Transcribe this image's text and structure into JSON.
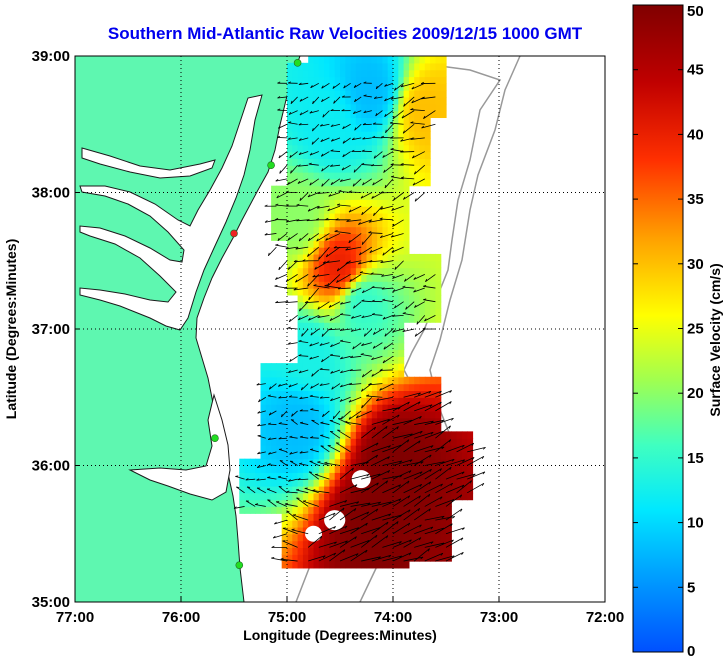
{
  "chart_data": {
    "type": "heatmap",
    "title": "Southern Mid-Atlantic Raw Velocities 2009/12/15 1000 GMT",
    "xlabel": "Longitude (Degrees:Minutes)",
    "ylabel": "Latitude (Degrees:Minutes)",
    "xlim": [
      -77,
      -72
    ],
    "ylim": [
      35,
      39
    ],
    "x_ticks": [
      {
        "value": -77,
        "label": "77:00"
      },
      {
        "value": -76,
        "label": "76:00"
      },
      {
        "value": -75,
        "label": "75:00"
      },
      {
        "value": -74,
        "label": "74:00"
      },
      {
        "value": -73,
        "label": "73:00"
      },
      {
        "value": -72,
        "label": "72:00"
      }
    ],
    "y_ticks": [
      {
        "value": 35,
        "label": "35:00"
      },
      {
        "value": 36,
        "label": "36:00"
      },
      {
        "value": 37,
        "label": "37:00"
      },
      {
        "value": 38,
        "label": "38:00"
      },
      {
        "value": 39,
        "label": "39:00"
      }
    ],
    "grid": true,
    "colorbar": {
      "label": "Surface Velocity (cm/s)",
      "range": [
        0,
        50
      ],
      "ticks": [
        0,
        5,
        10,
        15,
        20,
        25,
        30,
        35,
        40,
        45,
        50
      ],
      "colormap": [
        "#0040ff",
        "#00a0ff",
        "#00ffff",
        "#40ffb0",
        "#b0ff40",
        "#ffff00",
        "#ff9000",
        "#ff2000",
        "#c00000",
        "#800000"
      ]
    },
    "stations": [
      {
        "lon": -74.9,
        "lat": 38.95,
        "color": "#22dd22"
      },
      {
        "lon": -75.15,
        "lat": 38.2,
        "color": "#22dd22"
      },
      {
        "lon": -75.5,
        "lat": 37.7,
        "color": "#ee2222"
      },
      {
        "lon": -75.68,
        "lat": 36.2,
        "color": "#22dd22"
      },
      {
        "lon": -75.45,
        "lat": 35.27,
        "color": "#22dd22"
      }
    ],
    "velocity_field": {
      "note_units": "cm/s",
      "samples": [
        {
          "lon": -74.6,
          "lat": 38.5,
          "speed": 12
        },
        {
          "lon": -74.2,
          "lat": 38.75,
          "speed": 8
        },
        {
          "lon": -73.7,
          "lat": 38.6,
          "speed": 30
        },
        {
          "lon": -74.9,
          "lat": 37.8,
          "speed": 20
        },
        {
          "lon": -74.5,
          "lat": 37.45,
          "speed": 40
        },
        {
          "lon": -74.3,
          "lat": 37.2,
          "speed": 15
        },
        {
          "lon": -74.8,
          "lat": 36.8,
          "speed": 13
        },
        {
          "lon": -74.9,
          "lat": 36.3,
          "speed": 8
        },
        {
          "lon": -74.0,
          "lat": 36.0,
          "speed": 50
        },
        {
          "lon": -74.2,
          "lat": 35.6,
          "speed": 50
        }
      ]
    }
  }
}
